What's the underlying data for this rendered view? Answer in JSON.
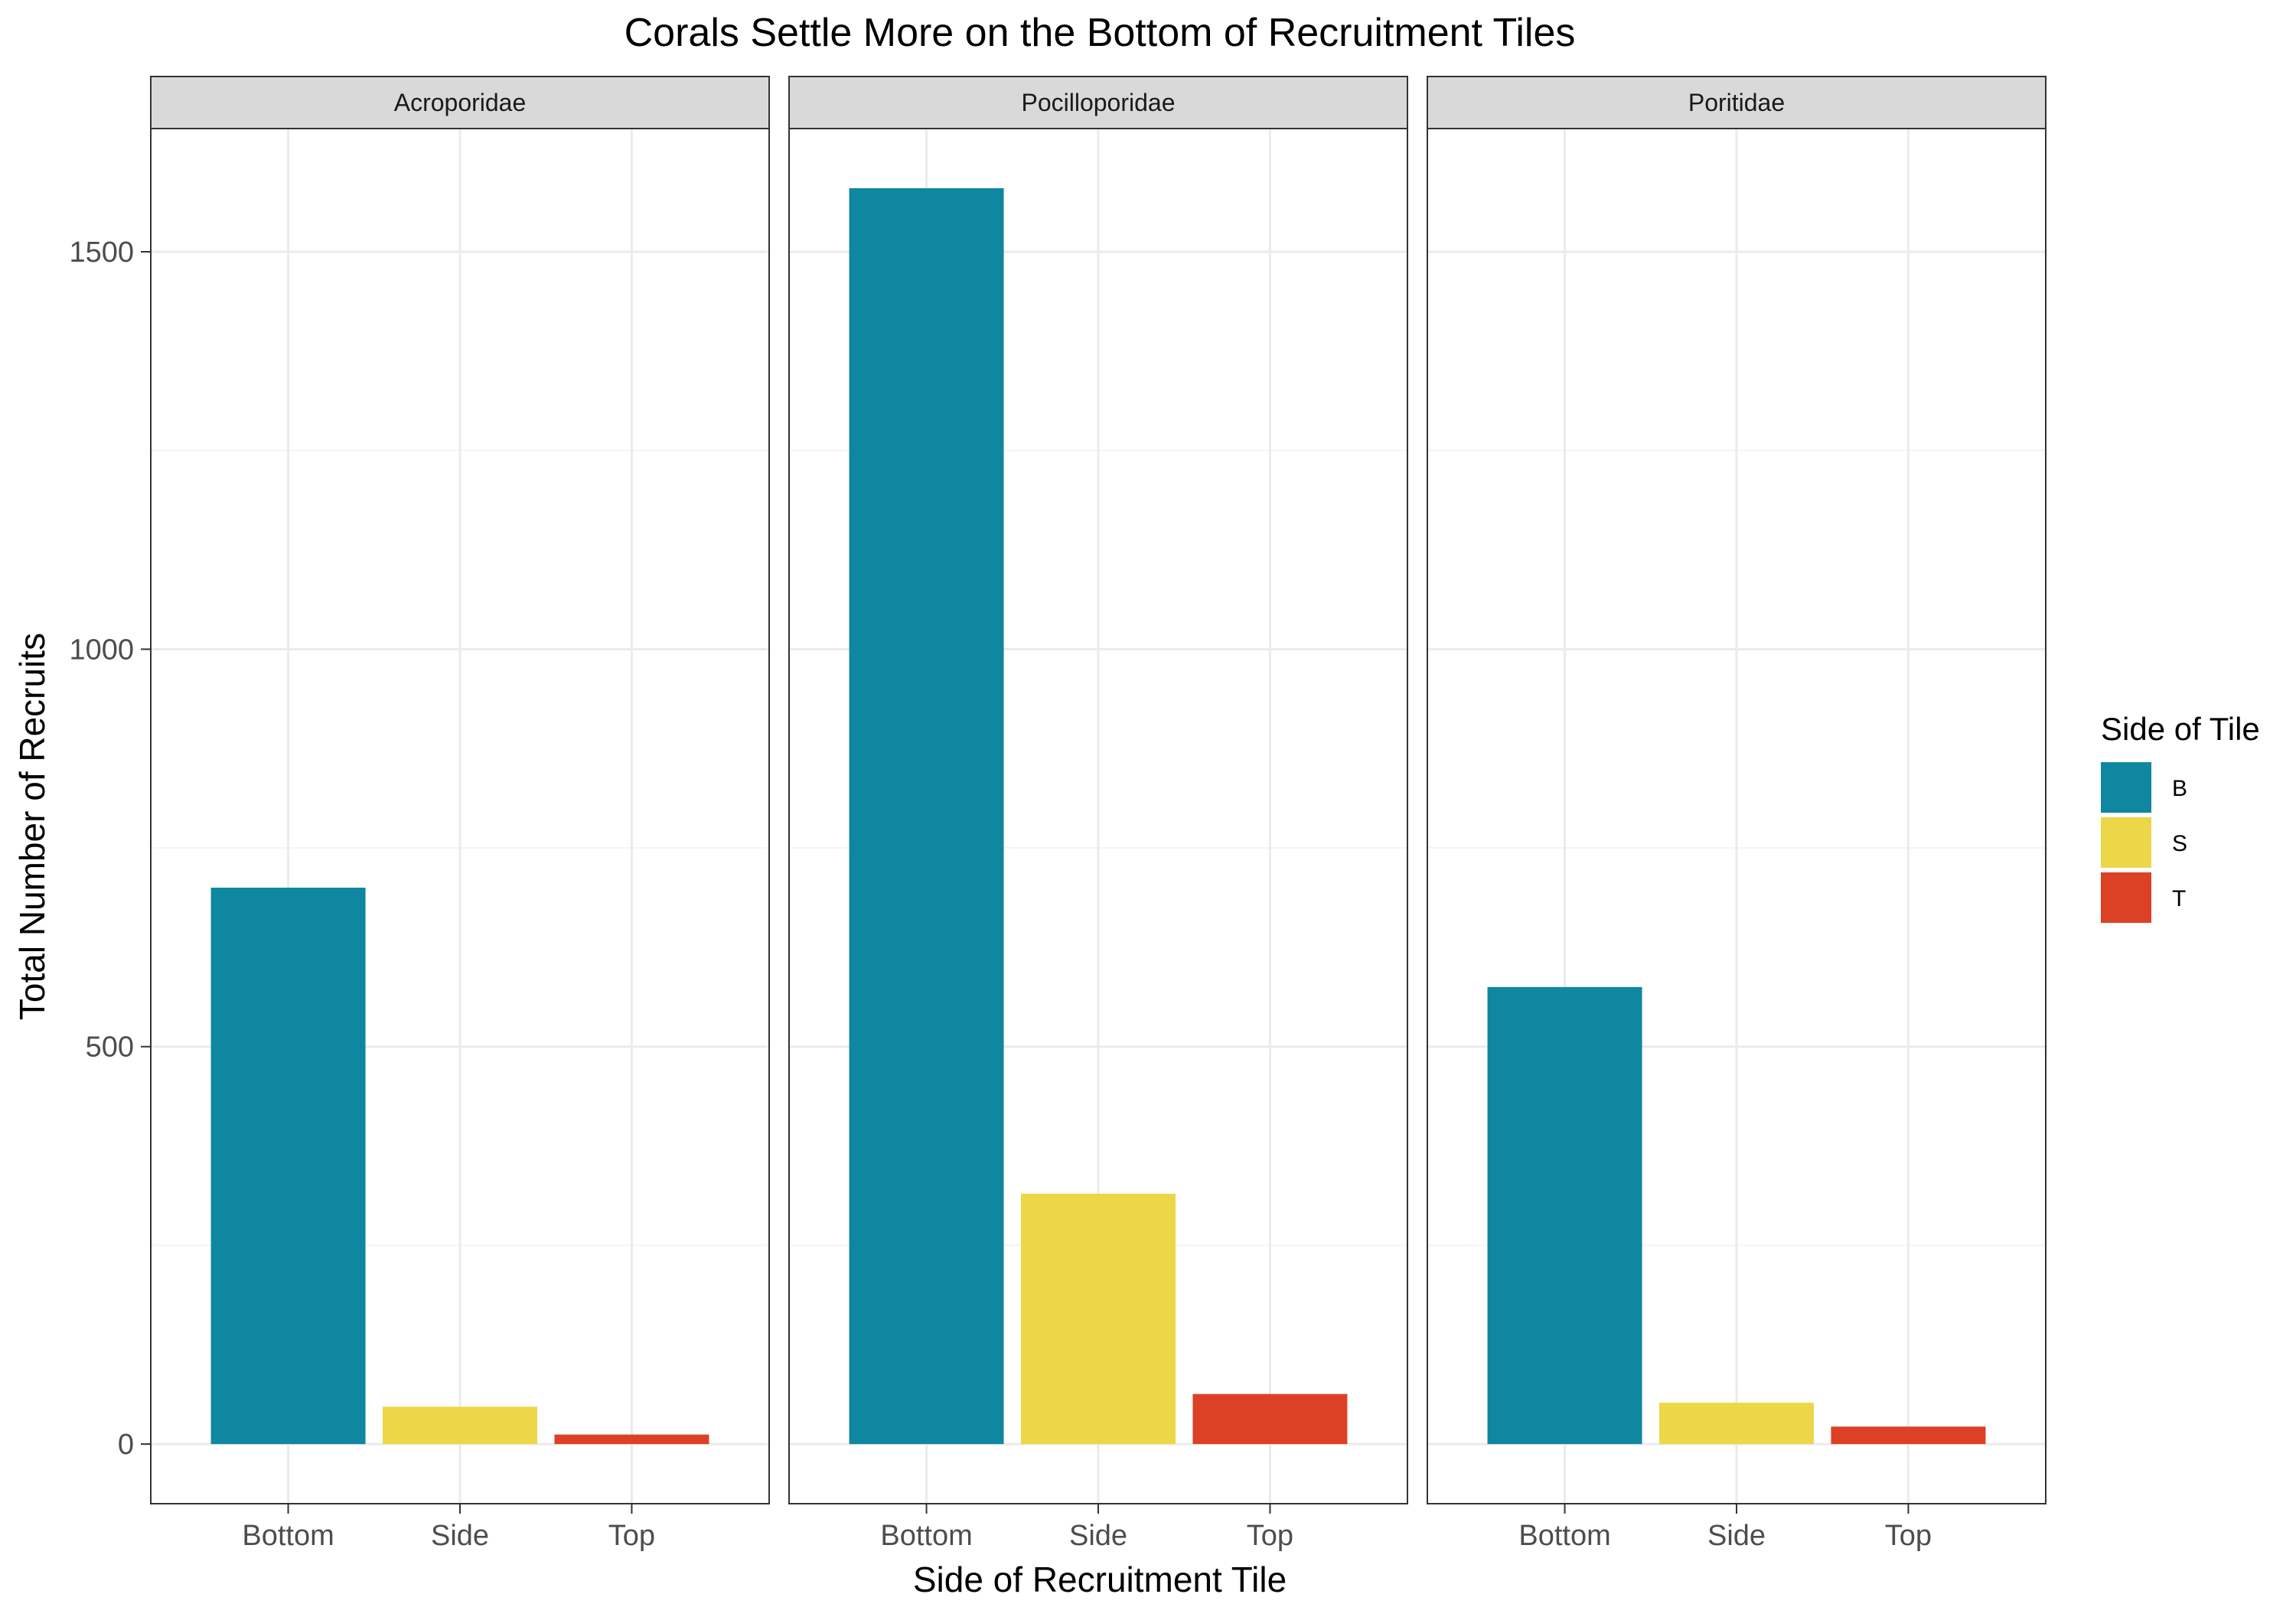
{
  "chart_data": {
    "type": "bar",
    "title": "Corals Settle More on the Bottom of Recruitment Tiles",
    "xlabel": "Side of Recruitment Tile",
    "ylabel": "Total Number of Recruits",
    "categories": [
      "Bottom",
      "Side",
      "Top"
    ],
    "facets": [
      {
        "name": "Acroporidae",
        "values": [
          700,
          47,
          12
        ]
      },
      {
        "name": "Pocilloporidae",
        "values": [
          1580,
          315,
          63
        ]
      },
      {
        "name": "Poritidae",
        "values": [
          575,
          52,
          22
        ]
      }
    ],
    "ylim": [
      -75,
      1655
    ],
    "yticks": [
      0,
      500,
      1000,
      1500
    ],
    "grid": true,
    "legend": {
      "title": "Side of Tile",
      "placement": "right",
      "entries": [
        {
          "label": "B",
          "color": "#1087A0"
        },
        {
          "label": "S",
          "color": "#ECD748"
        },
        {
          "label": "T",
          "color": "#DC4125"
        }
      ]
    },
    "colors": {
      "panel_border": "#333333",
      "strip_fill": "#D9D9D9",
      "grid_major": "#EBEBEB",
      "grid_minor": "#F4F4F4"
    }
  }
}
